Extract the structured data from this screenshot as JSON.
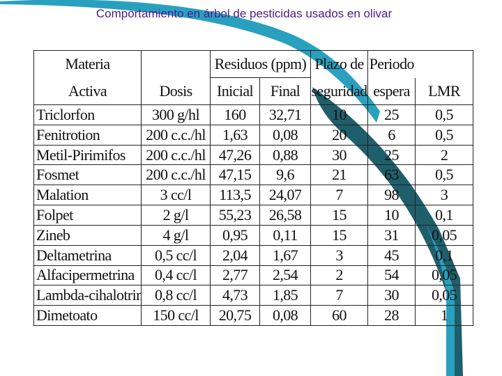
{
  "title": "Comportamiento en árbol  de pesticidas usados en olivar",
  "colors": {
    "title": "#4b1a8c",
    "swoosh_dark": "#1f5f6b",
    "swoosh_light": "#2aa0bf"
  },
  "table": {
    "header_row1": [
      "Materia",
      "",
      "Residuos (ppm)",
      "Plazo de",
      "Periodo",
      ""
    ],
    "header_row2": [
      "Activa",
      "Dosis",
      "Inicial",
      "Final",
      "seguridad",
      "espera",
      "LMR"
    ],
    "rows": [
      [
        "Triclorfon",
        "300 g/hl",
        "160",
        "32,71",
        "10",
        "25",
        "0,5"
      ],
      [
        "Fenitrotion",
        "200 c.c./hl",
        "1,63",
        "0,08",
        "20",
        "6",
        "0,5"
      ],
      [
        "Metil-Pirimifos",
        "200 c.c./hl",
        "47,26",
        "0,88",
        "30",
        "25",
        "2"
      ],
      [
        "Fosmet",
        "200 c.c./hl",
        "47,15",
        "9,6",
        "21",
        "63",
        "0,5"
      ],
      [
        "Malation",
        "3 cc/l",
        "113,5",
        "24,07",
        "7",
        "98",
        "3"
      ],
      [
        "Folpet",
        "2 g/l",
        "55,23",
        "26,58",
        "15",
        "10",
        "0,1"
      ],
      [
        "Zineb",
        "4 g/l",
        "0,95",
        "0,11",
        "15",
        "31",
        "0,05"
      ],
      [
        "Deltametrina",
        "0,5 cc/l",
        "2,04",
        "1,67",
        "3",
        "45",
        "0,1"
      ],
      [
        "Alfacipermetrina",
        "0,4 cc/l",
        "2,77",
        "2,54",
        "2",
        "54",
        "0,05"
      ],
      [
        "Lambda-cihalotrin",
        "0,8 cc/l",
        "4,73",
        "1,85",
        "7",
        "30",
        "0,05"
      ],
      [
        "Dimetoato",
        "150 cc/l",
        "20,75",
        "0,08",
        "60",
        "28",
        "1"
      ]
    ]
  }
}
